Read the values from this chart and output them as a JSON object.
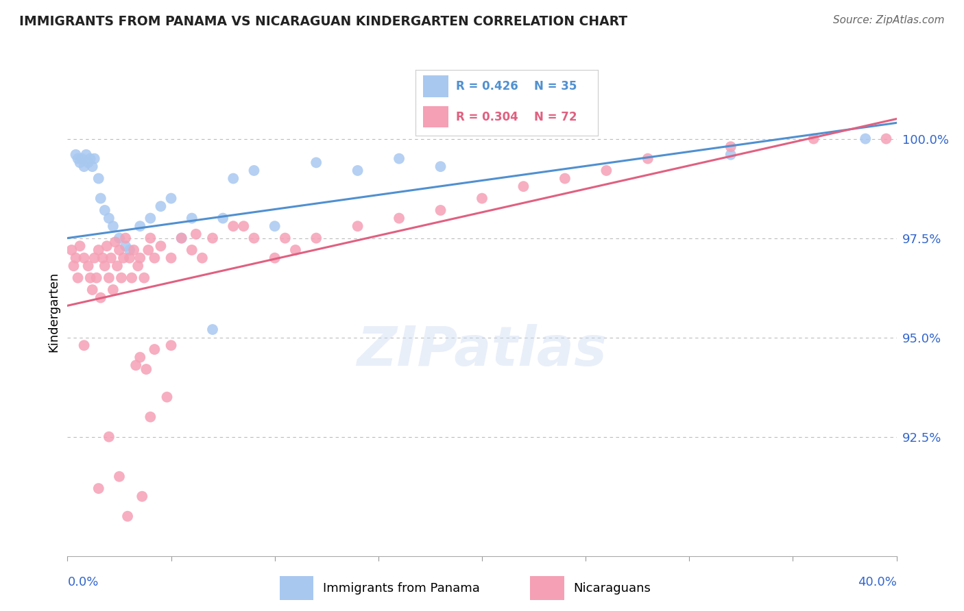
{
  "title": "IMMIGRANTS FROM PANAMA VS NICARAGUAN KINDERGARTEN CORRELATION CHART",
  "source": "Source: ZipAtlas.com",
  "ylabel": "Kindergarten",
  "ytick_values": [
    92.5,
    95.0,
    97.5,
    100.0
  ],
  "xlim": [
    0.0,
    40.0
  ],
  "ylim": [
    89.5,
    101.8
  ],
  "legend_blue_label": "R = 0.426  N = 35",
  "legend_pink_label": "R = 0.304  N = 72",
  "watermark": "ZIPatlas",
  "blue_scatter_x": [
    0.4,
    0.5,
    0.6,
    0.7,
    0.8,
    0.9,
    1.0,
    1.1,
    1.2,
    1.3,
    1.5,
    1.6,
    1.8,
    2.0,
    2.2,
    2.5,
    2.8,
    3.0,
    3.5,
    4.0,
    4.5,
    5.0,
    5.5,
    6.0,
    7.0,
    7.5,
    8.0,
    9.0,
    10.0,
    12.0,
    14.0,
    16.0,
    18.0,
    32.0,
    38.5
  ],
  "blue_scatter_y": [
    99.6,
    99.5,
    99.4,
    99.5,
    99.3,
    99.6,
    99.4,
    99.5,
    99.3,
    99.5,
    99.0,
    98.5,
    98.2,
    98.0,
    97.8,
    97.5,
    97.3,
    97.2,
    97.8,
    98.0,
    98.3,
    98.5,
    97.5,
    98.0,
    95.2,
    98.0,
    99.0,
    99.2,
    97.8,
    99.4,
    99.2,
    99.5,
    99.3,
    99.6,
    100.0
  ],
  "pink_scatter_x": [
    0.2,
    0.3,
    0.4,
    0.5,
    0.6,
    0.8,
    1.0,
    1.1,
    1.2,
    1.3,
    1.4,
    1.5,
    1.6,
    1.7,
    1.8,
    1.9,
    2.0,
    2.1,
    2.2,
    2.3,
    2.4,
    2.5,
    2.6,
    2.7,
    2.8,
    3.0,
    3.1,
    3.2,
    3.4,
    3.5,
    3.7,
    3.9,
    4.0,
    4.2,
    4.5,
    5.0,
    5.5,
    6.0,
    6.5,
    7.0,
    8.0,
    9.0,
    10.0,
    11.0,
    12.0,
    14.0,
    16.0,
    18.0,
    20.0,
    22.0,
    24.0,
    26.0,
    28.0,
    32.0,
    36.0,
    39.5,
    0.8,
    3.5,
    3.8,
    4.2,
    3.3,
    5.0,
    10.5,
    8.5,
    2.0,
    4.0,
    1.5,
    2.5,
    2.9,
    3.6,
    4.8,
    6.2
  ],
  "pink_scatter_y": [
    97.2,
    96.8,
    97.0,
    96.5,
    97.3,
    97.0,
    96.8,
    96.5,
    96.2,
    97.0,
    96.5,
    97.2,
    96.0,
    97.0,
    96.8,
    97.3,
    96.5,
    97.0,
    96.2,
    97.4,
    96.8,
    97.2,
    96.5,
    97.0,
    97.5,
    97.0,
    96.5,
    97.2,
    96.8,
    97.0,
    96.5,
    97.2,
    97.5,
    97.0,
    97.3,
    97.0,
    97.5,
    97.2,
    97.0,
    97.5,
    97.8,
    97.5,
    97.0,
    97.2,
    97.5,
    97.8,
    98.0,
    98.2,
    98.5,
    98.8,
    99.0,
    99.2,
    99.5,
    99.8,
    100.0,
    100.0,
    94.8,
    94.5,
    94.2,
    94.7,
    94.3,
    94.8,
    97.5,
    97.8,
    92.5,
    93.0,
    91.2,
    91.5,
    90.5,
    91.0,
    93.5,
    97.6
  ],
  "blue_line_x": [
    0.0,
    40.0
  ],
  "blue_line_y": [
    97.5,
    100.4
  ],
  "pink_line_x": [
    0.0,
    40.0
  ],
  "pink_line_y": [
    95.8,
    100.5
  ],
  "blue_color": "#A8C8F0",
  "pink_color": "#F5A0B5",
  "blue_line_color": "#5090D0",
  "pink_line_color": "#E06080",
  "grid_color": "#BBBBBB",
  "title_color": "#222222",
  "tick_label_color": "#3366CC"
}
